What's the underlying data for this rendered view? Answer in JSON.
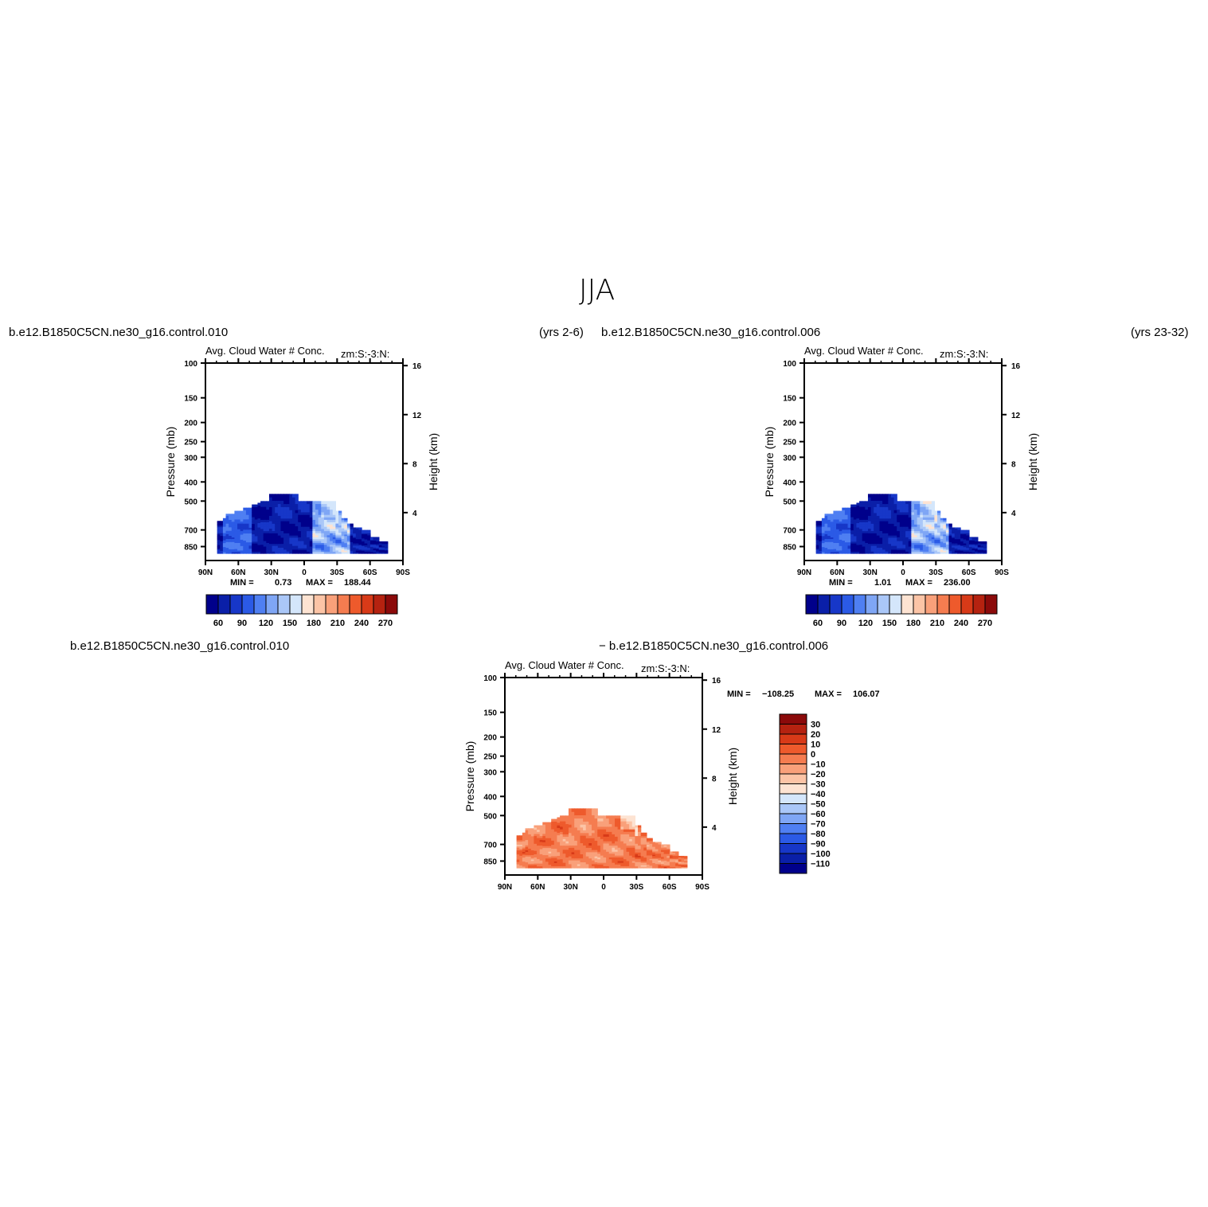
{
  "figure": {
    "title": "JJA",
    "variable": "Avg. Cloud Water # Conc.",
    "zonal_label": "zm:S:-3:N:",
    "ylabel_left": "Pressure (mb)",
    "ylabel_right": "Height (km)"
  },
  "panels": [
    {
      "case": "b.e12.B1850C5CN.ne30_g16.control.010",
      "years": "(yrs 2-6)",
      "min_label": "MIN =",
      "min": "0.73",
      "max_label": "MAX =",
      "max": "188.44"
    },
    {
      "case": "b.e12.B1850C5CN.ne30_g16.control.006",
      "years": "(yrs 23-32)",
      "min_label": "MIN =",
      "min": "1.01",
      "max_label": "MAX =",
      "max": "236.00"
    },
    {
      "case_left": "b.e12.B1850C5CN.ne30_g16.control.010",
      "case_right": "− b.e12.B1850C5CN.ne30_g16.control.006",
      "min_label": "MIN =",
      "min": "−108.25",
      "max_label": "MAX =",
      "max": "106.07"
    }
  ],
  "chart_data": [
    {
      "type": "heatmap",
      "panel": 1,
      "x_ticks": [
        "90N",
        "60N",
        "30N",
        "0",
        "30S",
        "60S",
        "90S"
      ],
      "y_ticks_left": [
        "100",
        "150",
        "200",
        "250",
        "300",
        "400",
        "500",
        "700",
        "850"
      ],
      "y_ticks_right": [
        "16",
        "12",
        "8",
        "4"
      ],
      "colorbar_labels": [
        "60",
        "90",
        "120",
        "150",
        "180",
        "210",
        "240",
        "270"
      ],
      "colors": [
        "#00008b",
        "#0a1fa8",
        "#1737c8",
        "#2b5ae6",
        "#4f7ff2",
        "#7fa6f5",
        "#aac7f8",
        "#d4e6fb",
        "#fde3d2",
        "#fcc4a6",
        "#f9a07a",
        "#f57c50",
        "#ee5a2c",
        "#d83a18",
        "#b52210",
        "#8b0a0a"
      ]
    },
    {
      "type": "heatmap",
      "panel": 2,
      "x_ticks": [
        "90N",
        "60N",
        "30N",
        "0",
        "30S",
        "60S",
        "90S"
      ],
      "y_ticks_left": [
        "100",
        "150",
        "200",
        "250",
        "300",
        "400",
        "500",
        "700",
        "850"
      ],
      "y_ticks_right": [
        "16",
        "12",
        "8",
        "4"
      ],
      "colorbar_labels": [
        "60",
        "90",
        "120",
        "150",
        "180",
        "210",
        "240",
        "270"
      ],
      "colors": [
        "#00008b",
        "#0a1fa8",
        "#1737c8",
        "#2b5ae6",
        "#4f7ff2",
        "#7fa6f5",
        "#aac7f8",
        "#d4e6fb",
        "#fde3d2",
        "#fcc4a6",
        "#f9a07a",
        "#f57c50",
        "#ee5a2c",
        "#d83a18",
        "#b52210",
        "#8b0a0a"
      ]
    },
    {
      "type": "heatmap",
      "panel": 3,
      "x_ticks": [
        "90N",
        "60N",
        "30N",
        "0",
        "30S",
        "60S",
        "90S"
      ],
      "y_ticks_left": [
        "100",
        "150",
        "200",
        "250",
        "300",
        "400",
        "500",
        "700",
        "850"
      ],
      "y_ticks_right": [
        "16",
        "12",
        "8",
        "4"
      ],
      "colorbar_labels": [
        "30",
        "20",
        "10",
        "0",
        "−10",
        "−20",
        "−30",
        "−40",
        "−50",
        "−60",
        "−70",
        "−80",
        "−90",
        "−100",
        "−110"
      ],
      "colors": [
        "#8b0a0a",
        "#b52210",
        "#d83a18",
        "#ee5a2c",
        "#f57c50",
        "#f9a07a",
        "#fcc4a6",
        "#fde3d2",
        "#d4e6fb",
        "#aac7f8",
        "#7fa6f5",
        "#4f7ff2",
        "#2b5ae6",
        "#1737c8",
        "#0a1fa8",
        "#00008b"
      ]
    }
  ]
}
